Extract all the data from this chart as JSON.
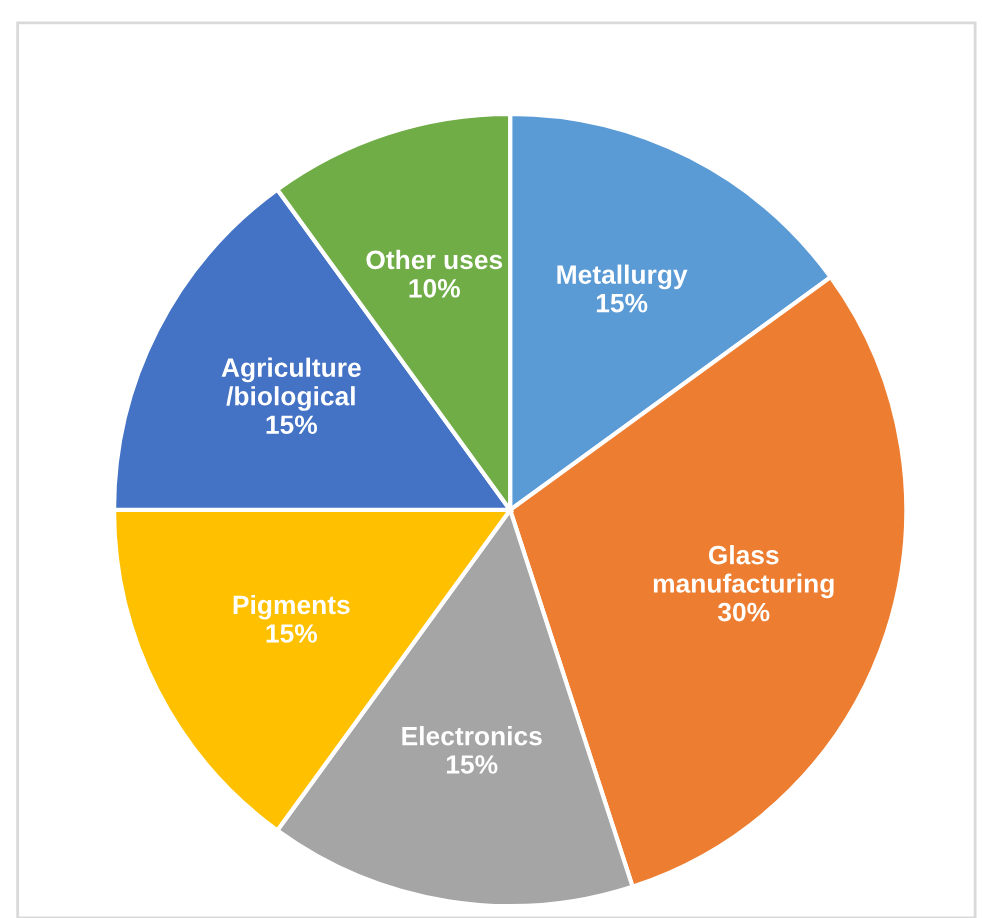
{
  "chart_data": {
    "type": "pie",
    "categories": [
      "Metallurgy",
      "Glass\nmanufacturing",
      "Electronics",
      "Pigments",
      "Agriculture\n/biological",
      "Other uses"
    ],
    "values": [
      15,
      30,
      15,
      15,
      15,
      10
    ],
    "value_labels": [
      "15%",
      "30%",
      "15%",
      "15%",
      "15%",
      "10%"
    ],
    "colors": [
      "#5b9bd5",
      "#ed7d31",
      "#a5a5a5",
      "#ffc000",
      "#4472c4",
      "#70ad47"
    ]
  }
}
